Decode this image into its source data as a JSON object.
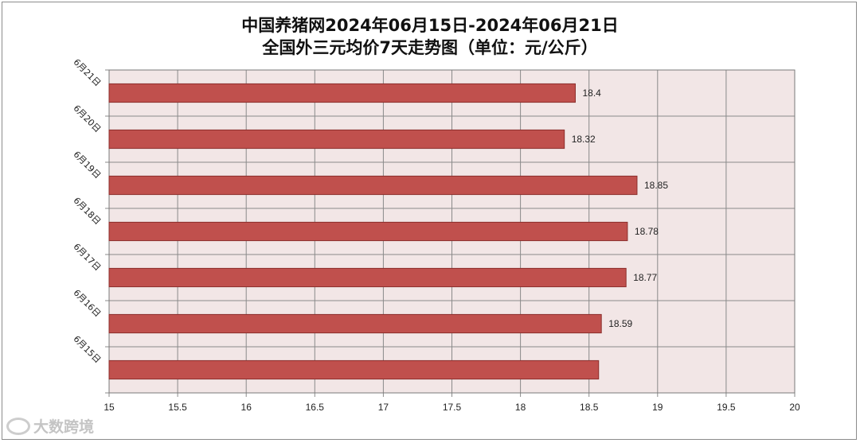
{
  "chart_data": {
    "type": "bar",
    "orientation": "horizontal",
    "title": "中国养猪网2024年06月15日-2024年06月21日",
    "subtitle": "全国外三元均价7天走势图（单位：元/公斤）",
    "categories": [
      "6月21日",
      "6月20日",
      "6月19日",
      "6月18日",
      "6月17日",
      "6月16日",
      "6月15日"
    ],
    "values": [
      18.4,
      18.32,
      18.85,
      18.78,
      18.77,
      18.59,
      18.57
    ],
    "data_labels": [
      "18.4",
      "18.32",
      "18.85",
      "18.78",
      "18.77",
      "18.59",
      ""
    ],
    "xlim": [
      15,
      20
    ],
    "x_ticks": [
      "15",
      "15.5",
      "16",
      "16.5",
      "17",
      "17.5",
      "18",
      "18.5",
      "19",
      "19.5",
      "20"
    ],
    "grid": true,
    "bar_color": "#C0504D",
    "plot_background": "#F2E6E6"
  },
  "watermark": {
    "text": "大数跨境",
    "icon": "logo-icon"
  }
}
